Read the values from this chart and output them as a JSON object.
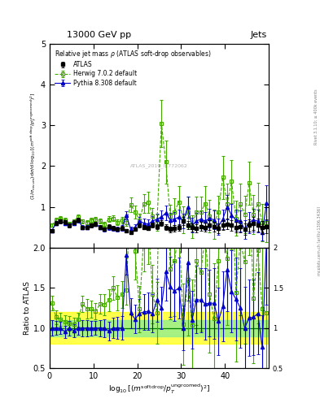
{
  "title_top": "13000 GeV pp",
  "title_right": "Jets",
  "plot_title": "Relative jet mass ρ (ATLAS soft-drop observables)",
  "watermark": "ATLAS_2019_I1772062",
  "side_text": "Rivet 3.1.10; ≥ 400k events",
  "side_text2": "mcplots.cern.ch [arXiv:1306.3436]",
  "x_centers": [
    0.5,
    1.5,
    2.5,
    3.5,
    4.5,
    5.5,
    6.5,
    7.5,
    8.5,
    9.5,
    10.5,
    11.5,
    12.5,
    13.5,
    14.5,
    15.5,
    16.5,
    17.5,
    18.5,
    19.5,
    20.5,
    21.5,
    22.5,
    23.5,
    24.5,
    25.5,
    26.5,
    27.5,
    28.5,
    29.5,
    30.5,
    31.5,
    32.5,
    33.5,
    34.5,
    35.5,
    36.5,
    37.5,
    38.5,
    39.5,
    40.5,
    41.5,
    42.5,
    43.5,
    44.5,
    45.5,
    46.5,
    47.5,
    48.5,
    49.5
  ],
  "y_atlas": [
    0.42,
    0.6,
    0.65,
    0.63,
    0.55,
    0.62,
    0.68,
    0.5,
    0.5,
    0.55,
    0.58,
    0.5,
    0.45,
    0.52,
    0.48,
    0.45,
    0.48,
    0.42,
    0.38,
    0.45,
    0.55,
    0.5,
    0.48,
    0.55,
    0.52,
    0.6,
    0.5,
    0.45,
    0.48,
    0.5,
    0.65,
    0.55,
    0.5,
    0.48,
    0.52,
    0.5,
    0.55,
    0.52,
    0.48,
    0.55,
    0.58,
    0.55,
    0.5,
    0.52,
    0.45,
    0.55,
    0.6,
    0.55,
    0.5,
    0.52
  ],
  "yerr_atlas": [
    0.04,
    0.05,
    0.05,
    0.05,
    0.05,
    0.05,
    0.05,
    0.04,
    0.04,
    0.05,
    0.05,
    0.05,
    0.04,
    0.05,
    0.05,
    0.04,
    0.05,
    0.04,
    0.04,
    0.04,
    0.05,
    0.05,
    0.05,
    0.06,
    0.06,
    0.07,
    0.07,
    0.07,
    0.08,
    0.08,
    0.1,
    0.1,
    0.1,
    0.1,
    0.11,
    0.11,
    0.12,
    0.12,
    0.12,
    0.12,
    0.13,
    0.13,
    0.13,
    0.14,
    0.14,
    0.15,
    0.16,
    0.16,
    0.16,
    0.17
  ],
  "y_herwig": [
    0.55,
    0.68,
    0.72,
    0.68,
    0.58,
    0.65,
    0.75,
    0.65,
    0.62,
    0.68,
    0.7,
    0.65,
    0.58,
    0.7,
    0.72,
    0.62,
    0.68,
    0.62,
    1.05,
    0.88,
    0.68,
    1.08,
    1.12,
    0.78,
    0.62,
    3.05,
    2.1,
    0.78,
    0.88,
    1.12,
    0.68,
    0.88,
    0.52,
    0.88,
    0.88,
    1.08,
    0.78,
    0.58,
    0.88,
    1.72,
    1.08,
    1.62,
    0.72,
    1.08,
    0.82,
    1.58,
    0.82,
    1.08,
    0.62,
    0.62
  ],
  "yerr_herwig": [
    0.04,
    0.05,
    0.05,
    0.05,
    0.05,
    0.05,
    0.06,
    0.05,
    0.06,
    0.06,
    0.06,
    0.06,
    0.06,
    0.07,
    0.07,
    0.07,
    0.08,
    0.08,
    0.18,
    0.16,
    0.16,
    0.23,
    0.26,
    0.2,
    0.2,
    0.58,
    0.53,
    0.28,
    0.33,
    0.38,
    0.33,
    0.38,
    0.28,
    0.38,
    0.38,
    0.43,
    0.4,
    0.36,
    0.4,
    0.53,
    0.48,
    0.53,
    0.43,
    0.48,
    0.46,
    0.53,
    0.48,
    0.5,
    0.46,
    0.48
  ],
  "y_pythia": [
    0.42,
    0.6,
    0.65,
    0.6,
    0.55,
    0.6,
    0.68,
    0.5,
    0.5,
    0.55,
    0.58,
    0.5,
    0.45,
    0.5,
    0.48,
    0.45,
    0.48,
    0.8,
    0.45,
    0.5,
    0.65,
    0.6,
    0.58,
    0.65,
    0.7,
    0.75,
    0.85,
    0.68,
    0.7,
    0.75,
    0.65,
    1.0,
    0.55,
    0.65,
    0.7,
    0.65,
    0.72,
    0.68,
    0.52,
    0.7,
    1.0,
    0.8,
    0.68,
    0.65,
    0.45,
    0.62,
    0.68,
    0.65,
    0.38,
    1.1
  ],
  "yerr_pythia": [
    0.04,
    0.05,
    0.05,
    0.05,
    0.05,
    0.05,
    0.06,
    0.05,
    0.05,
    0.05,
    0.05,
    0.05,
    0.05,
    0.06,
    0.06,
    0.06,
    0.07,
    0.1,
    0.07,
    0.08,
    0.1,
    0.11,
    0.11,
    0.13,
    0.14,
    0.16,
    0.18,
    0.17,
    0.18,
    0.19,
    0.18,
    0.26,
    0.18,
    0.2,
    0.21,
    0.22,
    0.23,
    0.23,
    0.2,
    0.24,
    0.3,
    0.28,
    0.26,
    0.26,
    0.23,
    0.26,
    0.28,
    0.28,
    0.2,
    0.43
  ],
  "atlas_color": "#000000",
  "herwig_color": "#44aa00",
  "pythia_color": "#0000cc",
  "band_yellow": [
    0.8,
    1.2
  ],
  "band_green": [
    0.9,
    1.1
  ],
  "band_yellow_color": "#ffff00",
  "band_green_color": "#90ee90",
  "ylim_main": [
    0,
    5
  ],
  "ylim_ratio": [
    0.5,
    2.0
  ],
  "xlim": [
    0,
    50
  ],
  "yticks_main": [
    1,
    2,
    3,
    4,
    5
  ],
  "yticks_ratio": [
    0.5,
    1.0,
    1.5,
    2.0
  ],
  "xticks": [
    0,
    10,
    20,
    30,
    40
  ],
  "ylabel_main_lines": [
    "(1/σ_{resum}) dσ/d log₁₀[(m^{soft drop}/p_T^{ungroomed})^2]"
  ],
  "ylabel_ratio": "Ratio to ATLAS",
  "xlabel": "log₁₀[(m^{soft drop}/p_T^{ungroomed} )^2]"
}
